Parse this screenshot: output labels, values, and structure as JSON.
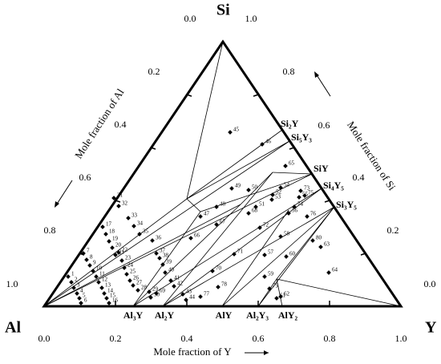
{
  "vertices": {
    "si": "Si",
    "al": "Al",
    "y": "Y"
  },
  "compounds": [
    "Si₂Y",
    "Si₅Y₃",
    "SiY",
    "Si₄Y₅",
    "Si₃Y₅",
    "Al₃Y",
    "Al₂Y",
    "AlY",
    "Al₂Y₃",
    "AlY₂"
  ],
  "axes": {
    "al": {
      "title": "Mole fraction of Al",
      "ticks": [
        "0.0",
        "0.2",
        "0.4",
        "0.6",
        "0.8",
        "1.0"
      ]
    },
    "si": {
      "title": "Mole fraction of Si",
      "ticks": [
        "1.0",
        "0.8",
        "0.6",
        "0.4",
        "0.2",
        "0.0"
      ]
    },
    "y": {
      "title": "Mole fraction of Y",
      "ticks": [
        "0.0",
        "0.2",
        "0.4",
        "0.6",
        "0.8",
        "1.0"
      ]
    }
  },
  "points": [
    "1",
    "2",
    "3",
    "4",
    "5",
    "6",
    "7",
    "8",
    "9",
    "10",
    "11",
    "12",
    "13",
    "14",
    "15",
    "16",
    "17",
    "18",
    "19",
    "20",
    "21",
    "22",
    "23",
    "24",
    "25",
    "26",
    "27",
    "28",
    "29",
    "30",
    "31",
    "32",
    "33",
    "34",
    "35",
    "36",
    "37",
    "38",
    "39",
    "40",
    "41",
    "42",
    "43",
    "44",
    "45",
    "46",
    "47",
    "48",
    "49",
    "50",
    "51",
    "52",
    "53",
    "54",
    "55",
    "56",
    "57",
    "58",
    "59",
    "60",
    "61",
    "62",
    "63",
    "64",
    "65",
    "66",
    "67",
    "68",
    "69",
    "70",
    "71",
    "72",
    "73",
    "74",
    "75",
    "76",
    "77",
    "78",
    "79",
    "80"
  ]
}
